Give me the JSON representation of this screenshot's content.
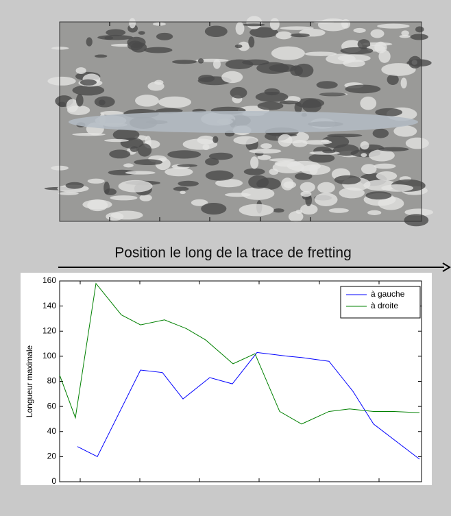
{
  "caption": "Position le long de la trace de fretting",
  "chart_data": {
    "type": "line",
    "y_label": "Longueur maximale",
    "xlim": [
      0,
      528
    ],
    "xticks": [
      30,
      117,
      204,
      291,
      379,
      466
    ],
    "ylim": [
      0,
      160
    ],
    "yticks": [
      0,
      20,
      40,
      60,
      80,
      100,
      120,
      140,
      160
    ],
    "legend": "top-right",
    "series": [
      {
        "name": "à gauche",
        "color": "#0000ff",
        "x": [
          26,
          55,
          118,
          150,
          180,
          219,
          252,
          288,
          333,
          353,
          393,
          428,
          458,
          525
        ],
        "values": [
          28,
          20,
          89,
          87,
          66,
          83,
          78,
          103,
          100,
          99,
          96,
          72,
          46,
          18
        ]
      },
      {
        "name": "à droite",
        "color": "#008000",
        "x": [
          0,
          23,
          53,
          90,
          118,
          153,
          185,
          213,
          253,
          285,
          321,
          353,
          393,
          423,
          458,
          488,
          525
        ],
        "values": [
          85,
          51,
          158,
          133,
          125,
          129,
          122,
          113,
          94,
          102,
          56,
          46,
          56,
          58,
          56,
          56,
          55
        ]
      }
    ]
  }
}
